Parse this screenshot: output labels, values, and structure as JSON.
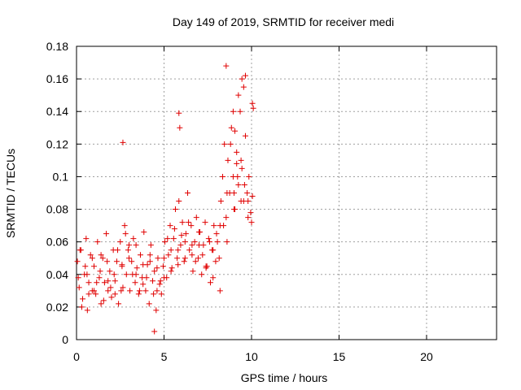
{
  "chart_data": {
    "type": "scatter",
    "title": "Day 149 of 2019, SRMTID for receiver medi",
    "xlabel": "GPS time / hours",
    "ylabel": "SRMTID / TECUs",
    "xlim": [
      0,
      24
    ],
    "ylim": [
      0,
      0.18
    ],
    "x_ticks": [
      0,
      5,
      10,
      15,
      20
    ],
    "x_tick_labels": [
      "0",
      "5",
      "10",
      "15",
      "20"
    ],
    "y_ticks": [
      0,
      0.02,
      0.04,
      0.06,
      0.08,
      0.1,
      0.12,
      0.14,
      0.16,
      0.18
    ],
    "y_tick_labels": [
      "0",
      "0.02",
      "0.04",
      "0.06",
      "0.08",
      "0.1",
      "0.12",
      "0.14",
      "0.16",
      "0.18"
    ],
    "grid": true,
    "marker": "+",
    "marker_color": "#e00000",
    "series": [
      {
        "name": "SRMTID",
        "x": [
          0.05,
          0.15,
          0.25,
          0.35,
          0.45,
          0.55,
          0.62,
          0.7,
          0.8,
          0.9,
          1.0,
          1.1,
          1.2,
          1.3,
          1.4,
          1.5,
          1.6,
          1.7,
          1.8,
          1.9,
          2.0,
          2.1,
          2.2,
          2.3,
          2.4,
          2.5,
          2.6,
          2.65,
          2.75,
          2.85,
          2.95,
          3.05,
          3.15,
          3.25,
          3.35,
          3.45,
          3.55,
          3.65,
          3.75,
          3.85,
          3.95,
          4.05,
          4.15,
          4.25,
          4.35,
          4.45,
          4.55,
          4.65,
          4.75,
          4.85,
          4.95,
          5.05,
          5.15,
          5.25,
          5.35,
          5.45,
          5.55,
          5.65,
          5.75,
          5.85,
          5.95,
          6.05,
          6.15,
          6.25,
          6.35,
          6.45,
          6.55,
          6.65,
          6.75,
          6.85,
          6.95,
          7.05,
          7.15,
          7.25,
          7.35,
          7.45,
          7.55,
          7.65,
          7.75,
          7.85,
          7.95,
          8.05,
          8.15,
          8.25,
          8.35,
          8.45,
          8.55,
          8.65,
          8.75,
          8.85,
          8.95,
          9.05,
          9.15,
          9.25,
          9.35,
          9.45,
          9.55,
          9.65,
          9.75,
          9.85,
          9.95,
          10.05,
          0.1,
          0.3,
          0.5,
          0.7,
          0.9,
          1.15,
          1.35,
          1.55,
          1.75,
          1.95,
          2.15,
          2.35,
          2.55,
          2.8,
          3.0,
          3.2,
          3.4,
          3.6,
          3.8,
          4.0,
          4.2,
          4.4,
          4.6,
          4.8,
          5.0,
          5.2,
          5.4,
          5.6,
          5.8,
          6.0,
          6.2,
          6.4,
          6.6,
          6.8,
          7.0,
          7.2,
          7.4,
          7.6,
          7.8,
          8.0,
          8.2,
          8.4,
          8.6,
          8.8,
          9.0,
          9.2,
          9.4,
          9.6,
          9.8,
          10.0,
          0.2,
          0.6,
          1.0,
          1.4,
          1.8,
          2.2,
          2.6,
          3.0,
          3.4,
          3.8,
          4.2,
          4.6,
          5.0,
          5.4,
          5.8,
          6.2,
          6.6,
          7.0,
          7.4,
          7.8,
          8.2,
          8.6,
          9.0,
          9.4,
          9.8,
          2.65,
          5.85,
          5.9,
          8.55,
          9.25,
          9.45,
          9.55,
          9.65,
          10.05,
          10.1,
          4.45,
          8.95,
          9.05,
          9.15
        ],
        "y": [
          0.048,
          0.032,
          0.055,
          0.025,
          0.04,
          0.062,
          0.018,
          0.035,
          0.052,
          0.03,
          0.045,
          0.028,
          0.06,
          0.038,
          0.022,
          0.05,
          0.035,
          0.065,
          0.03,
          0.042,
          0.026,
          0.055,
          0.036,
          0.048,
          0.022,
          0.06,
          0.045,
          0.032,
          0.07,
          0.04,
          0.055,
          0.03,
          0.048,
          0.062,
          0.035,
          0.044,
          0.028,
          0.052,
          0.038,
          0.066,
          0.03,
          0.046,
          0.022,
          0.058,
          0.036,
          0.042,
          0.018,
          0.05,
          0.034,
          0.028,
          0.045,
          0.06,
          0.038,
          0.052,
          0.07,
          0.044,
          0.062,
          0.08,
          0.05,
          0.085,
          0.058,
          0.072,
          0.048,
          0.065,
          0.09,
          0.055,
          0.07,
          0.042,
          0.06,
          0.075,
          0.05,
          0.066,
          0.04,
          0.058,
          0.072,
          0.045,
          0.062,
          0.035,
          0.055,
          0.07,
          0.048,
          0.06,
          0.05,
          0.085,
          0.1,
          0.12,
          0.075,
          0.11,
          0.09,
          0.13,
          0.1,
          0.08,
          0.115,
          0.095,
          0.14,
          0.105,
          0.085,
          0.125,
          0.09,
          0.1,
          0.078,
          0.088,
          0.038,
          0.02,
          0.045,
          0.028,
          0.05,
          0.035,
          0.042,
          0.024,
          0.048,
          0.032,
          0.04,
          0.055,
          0.03,
          0.065,
          0.05,
          0.04,
          0.058,
          0.03,
          0.046,
          0.038,
          0.052,
          0.028,
          0.044,
          0.036,
          0.05,
          0.062,
          0.042,
          0.068,
          0.055,
          0.064,
          0.05,
          0.072,
          0.058,
          0.048,
          0.066,
          0.052,
          0.044,
          0.06,
          0.038,
          0.065,
          0.03,
          0.07,
          0.09,
          0.12,
          0.08,
          0.1,
          0.11,
          0.095,
          0.085,
          0.072,
          0.055,
          0.04,
          0.03,
          0.052,
          0.036,
          0.028,
          0.046,
          0.058,
          0.04,
          0.034,
          0.048,
          0.03,
          0.038,
          0.055,
          0.046,
          0.06,
          0.052,
          0.058,
          0.045,
          0.055,
          0.07,
          0.06,
          0.09,
          0.085,
          0.075,
          0.121,
          0.139,
          0.13,
          0.168,
          0.15,
          0.16,
          0.155,
          0.162,
          0.145,
          0.142,
          0.005,
          0.14,
          0.128,
          0.108
        ]
      }
    ]
  }
}
